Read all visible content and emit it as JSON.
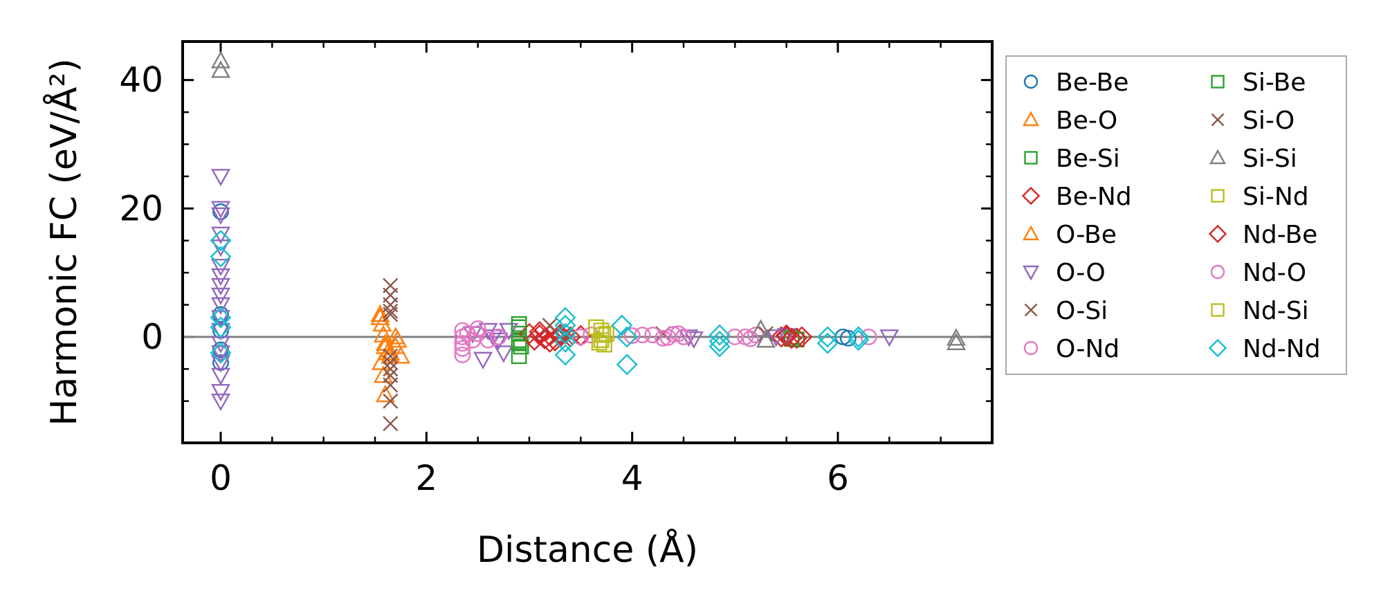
{
  "chart_data": {
    "type": "scatter",
    "title": "",
    "xlabel": "Distance (Å)",
    "ylabel": "Harmonic FC (eV/Å²)",
    "xlim": [
      -0.37,
      7.5
    ],
    "ylim": [
      -16.5,
      46
    ],
    "xticks": [
      0,
      2,
      4,
      6
    ],
    "xticks_minor": [
      0.5,
      1.0,
      1.5,
      2.5,
      3.0,
      3.5,
      4.5,
      5.0,
      5.5,
      6.5,
      7.0
    ],
    "yticks": [
      0,
      20,
      40
    ],
    "yticks_minor": [
      -10,
      -5,
      5,
      10,
      15,
      25,
      30,
      35
    ],
    "zero_line": 0,
    "grid": false,
    "legend_position": "outside-right",
    "legend_columns": 2,
    "series": [
      {
        "name": "Be-Be",
        "marker": "circle",
        "color": "#1f77b4",
        "points": [
          [
            0,
            19.5
          ],
          [
            0,
            3.5
          ],
          [
            0,
            1
          ],
          [
            0,
            -2
          ],
          [
            0,
            -4
          ],
          [
            6.05,
            0
          ],
          [
            6.1,
            -0.2
          ]
        ]
      },
      {
        "name": "Be-O",
        "marker": "triangle-up",
        "color": "#ff7f0e",
        "points": [
          [
            1.55,
            3.5
          ],
          [
            1.57,
            2
          ],
          [
            1.58,
            0.3
          ],
          [
            1.6,
            -1
          ],
          [
            1.62,
            -2.5
          ],
          [
            1.56,
            -4
          ],
          [
            1.58,
            -6
          ],
          [
            1.6,
            -9
          ],
          [
            1.65,
            -3
          ],
          [
            1.7,
            -1.5
          ],
          [
            1.72,
            -0.5
          ],
          [
            1.75,
            -3
          ]
        ]
      },
      {
        "name": "Be-Si",
        "marker": "square",
        "color": "#2ca02c",
        "points": [
          [
            2.9,
            1.5
          ],
          [
            2.9,
            0.5
          ],
          [
            2.9,
            -0.5
          ],
          [
            2.92,
            -1.5
          ],
          [
            2.9,
            -3
          ],
          [
            5.55,
            0
          ],
          [
            5.6,
            -0.4
          ]
        ]
      },
      {
        "name": "Be-Nd",
        "marker": "diamond",
        "color": "#d62728",
        "points": [
          [
            3.0,
            0.5
          ],
          [
            3.05,
            -0.5
          ],
          [
            3.1,
            0.3
          ],
          [
            3.15,
            -0.3
          ],
          [
            3.2,
            0.2
          ],
          [
            3.25,
            -0.6
          ],
          [
            3.3,
            0.4
          ],
          [
            3.4,
            0
          ],
          [
            3.5,
            0.2
          ],
          [
            5.45,
            0
          ],
          [
            5.5,
            0.3
          ],
          [
            5.6,
            -0.2
          ],
          [
            5.65,
            0
          ]
        ]
      },
      {
        "name": "O-Be",
        "marker": "triangle-up",
        "color": "#ff7f0e",
        "points": [
          [
            1.55,
            3
          ],
          [
            1.6,
            -1.5
          ],
          [
            1.65,
            -2.5
          ],
          [
            1.7,
            0
          ]
        ]
      },
      {
        "name": "O-O",
        "marker": "triangle-down",
        "color": "#9467bd",
        "points": [
          [
            0,
            25
          ],
          [
            0,
            20
          ],
          [
            0,
            19
          ],
          [
            0,
            16
          ],
          [
            0,
            14
          ],
          [
            0,
            11
          ],
          [
            0,
            9.5
          ],
          [
            0,
            8
          ],
          [
            0,
            6.5
          ],
          [
            0,
            5
          ],
          [
            0,
            3
          ],
          [
            0,
            1
          ],
          [
            0,
            -1
          ],
          [
            0,
            -2.5
          ],
          [
            0,
            -4
          ],
          [
            0,
            -6
          ],
          [
            0,
            -8.5
          ],
          [
            0,
            -10
          ],
          [
            2.45,
            0.5
          ],
          [
            2.55,
            -3.5
          ],
          [
            2.6,
            1
          ],
          [
            2.65,
            0
          ],
          [
            2.7,
            -0.5
          ],
          [
            2.75,
            -2.5
          ],
          [
            2.8,
            1
          ],
          [
            4.55,
            0
          ],
          [
            4.6,
            -0.3
          ],
          [
            5.4,
            0
          ],
          [
            5.5,
            0.2
          ],
          [
            6.5,
            0
          ]
        ]
      },
      {
        "name": "O-Si",
        "marker": "x",
        "color": "#8c564b",
        "points": [
          [
            1.65,
            8
          ],
          [
            1.65,
            5
          ],
          [
            1.65,
            3.5
          ],
          [
            1.65,
            -3
          ],
          [
            1.65,
            -5
          ],
          [
            1.65,
            -7.5
          ],
          [
            1.65,
            -10
          ],
          [
            1.65,
            -13.5
          ],
          [
            3.35,
            0
          ],
          [
            4.3,
            0.5
          ]
        ]
      },
      {
        "name": "O-Nd",
        "marker": "circle",
        "color": "#e377c2",
        "points": [
          [
            2.35,
            1
          ],
          [
            2.35,
            0
          ],
          [
            2.35,
            -1
          ],
          [
            2.35,
            -1.8
          ],
          [
            2.35,
            -2.8
          ],
          [
            2.5,
            0.5
          ],
          [
            2.6,
            -0.5
          ],
          [
            2.7,
            0
          ],
          [
            3.5,
            0
          ],
          [
            3.6,
            0.3
          ],
          [
            4.0,
            0.2
          ],
          [
            4.2,
            0.3
          ],
          [
            4.3,
            -0.2
          ],
          [
            4.4,
            0.4
          ],
          [
            4.5,
            0
          ],
          [
            5.0,
            0
          ],
          [
            5.2,
            0.3
          ],
          [
            6.3,
            0
          ]
        ]
      },
      {
        "name": "Si-Be",
        "marker": "square",
        "color": "#2ca02c",
        "points": [
          [
            2.9,
            2
          ],
          [
            2.9,
            -1
          ],
          [
            5.55,
            -0.3
          ]
        ]
      },
      {
        "name": "Si-O",
        "marker": "x",
        "color": "#8c564b",
        "points": [
          [
            1.65,
            6.5
          ],
          [
            1.65,
            4
          ],
          [
            1.65,
            -4
          ],
          [
            1.65,
            -6
          ],
          [
            3.2,
            1.8
          ],
          [
            5.3,
            0.5
          ]
        ]
      },
      {
        "name": "Si-Si",
        "marker": "triangle-up",
        "color": "#7f7f7f",
        "points": [
          [
            0,
            43
          ],
          [
            0,
            41.5
          ],
          [
            5.25,
            1.2
          ],
          [
            5.3,
            -0.5
          ],
          [
            7.15,
            -0.2
          ],
          [
            7.15,
            -0.9
          ]
        ]
      },
      {
        "name": "Si-Nd",
        "marker": "square",
        "color": "#bcbd22",
        "points": [
          [
            3.7,
            1
          ],
          [
            3.72,
            0.3
          ],
          [
            3.7,
            -0.5
          ],
          [
            3.73,
            -1.2
          ]
        ]
      },
      {
        "name": "Nd-Be",
        "marker": "diamond",
        "color": "#d62728",
        "points": [
          [
            3.1,
            0.8
          ],
          [
            3.2,
            -0.8
          ],
          [
            3.3,
            0
          ],
          [
            5.5,
            0.1
          ],
          [
            5.55,
            -0.2
          ]
        ]
      },
      {
        "name": "Nd-O",
        "marker": "circle",
        "color": "#e377c2",
        "points": [
          [
            2.4,
            0.5
          ],
          [
            2.45,
            -0.5
          ],
          [
            2.5,
            1.3
          ],
          [
            4.1,
            0.3
          ],
          [
            4.35,
            -0.1
          ],
          [
            4.45,
            0.5
          ],
          [
            5.1,
            0
          ],
          [
            5.15,
            -0.3
          ]
        ]
      },
      {
        "name": "Nd-Si",
        "marker": "square",
        "color": "#bcbd22",
        "points": [
          [
            3.65,
            1.5
          ],
          [
            3.68,
            -0.9
          ],
          [
            3.75,
            0.5
          ]
        ]
      },
      {
        "name": "Nd-Nd",
        "marker": "diamond",
        "color": "#17becf",
        "points": [
          [
            0,
            15
          ],
          [
            0,
            12.5
          ],
          [
            0,
            3
          ],
          [
            0,
            1.5
          ],
          [
            0,
            -2.5
          ],
          [
            3.35,
            3
          ],
          [
            3.35,
            1.8
          ],
          [
            3.35,
            0.5
          ],
          [
            3.35,
            -0.8
          ],
          [
            3.35,
            -2.8
          ],
          [
            3.9,
            1.8
          ],
          [
            3.95,
            0
          ],
          [
            3.95,
            -4.3
          ],
          [
            4.85,
            0.3
          ],
          [
            4.85,
            -0.7
          ],
          [
            4.85,
            -1.5
          ],
          [
            5.9,
            0
          ],
          [
            5.9,
            -1
          ],
          [
            6.2,
            0
          ],
          [
            6.2,
            -0.5
          ]
        ]
      }
    ]
  }
}
